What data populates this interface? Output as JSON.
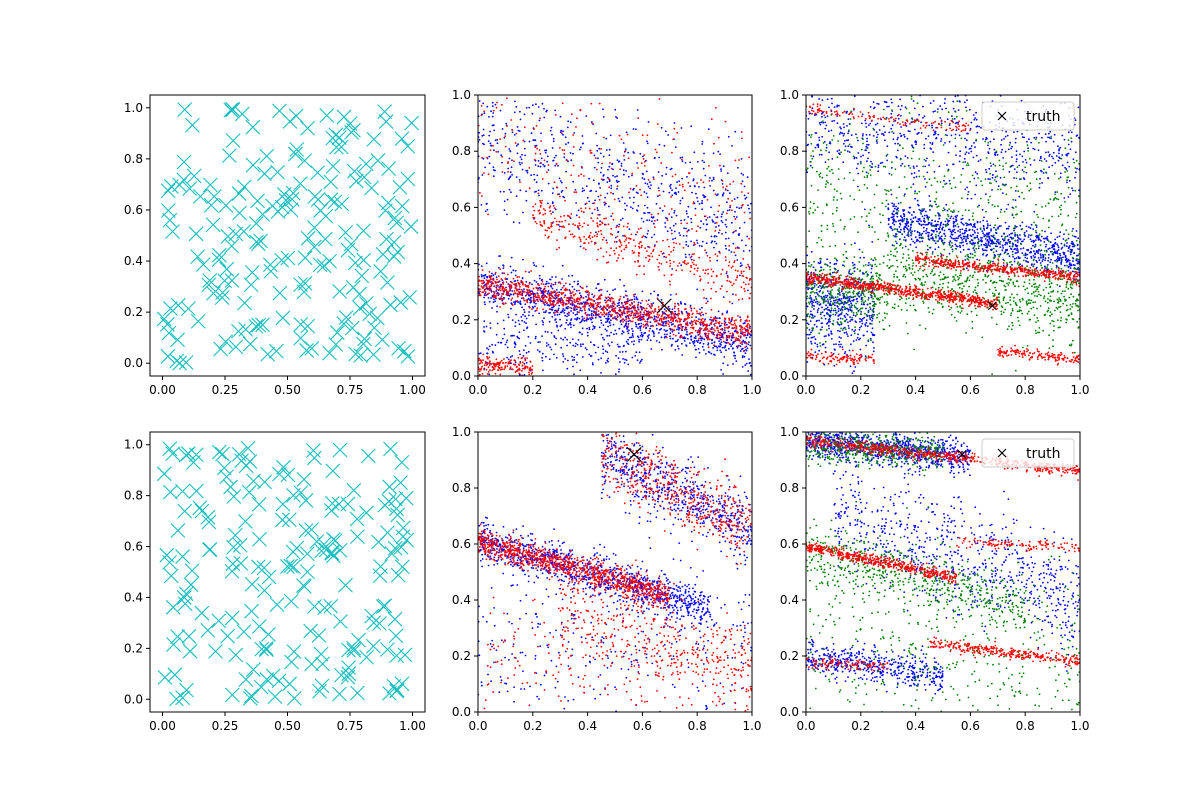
{
  "colors": {
    "cyan": "#17bfbf",
    "red": "#ff0000",
    "blue": "#0000ff",
    "green": "#008000",
    "black": "#000000"
  },
  "chart_data": [
    {
      "id": "top-left",
      "type": "scatter",
      "marker": "x",
      "xlim": [
        -0.05,
        1.05
      ],
      "ylim": [
        -0.05,
        1.05
      ],
      "xticks": [
        "0.00",
        "0.25",
        "0.50",
        "0.75",
        "1.00"
      ],
      "yticks": [
        "0.0",
        "0.2",
        "0.4",
        "0.6",
        "0.8",
        "1.0"
      ],
      "series": [
        {
          "color": "cyan",
          "count": 200,
          "seed": 11
        }
      ]
    },
    {
      "id": "top-middle",
      "type": "scatter",
      "marker": "dot",
      "xlim": [
        0,
        1
      ],
      "ylim": [
        0,
        1
      ],
      "xticks": [
        "0.0",
        "0.2",
        "0.4",
        "0.6",
        "0.8",
        "1.0"
      ],
      "yticks": [
        "0.0",
        "0.2",
        "0.4",
        "0.6",
        "0.8",
        "1.0"
      ],
      "series": [
        {
          "color": "blue",
          "bands": [
            {
              "y0": 0.33,
              "slope": -0.22,
              "spread": 0.045,
              "count": 1100,
              "x0": 0.0,
              "x1": 1.0
            },
            {
              "y0": 0.85,
              "slope": -0.3,
              "spread": 0.12,
              "count": 700,
              "x0": 0.0,
              "x1": 1.0
            },
            {
              "y0": 0.1,
              "slope": 0.0,
              "spread": 0.08,
              "count": 300,
              "x0": 0.0,
              "x1": 0.6
            }
          ]
        },
        {
          "color": "red",
          "bands": [
            {
              "y0": 0.33,
              "slope": -0.18,
              "spread": 0.025,
              "count": 1000,
              "x0": 0.0,
              "x1": 1.0
            },
            {
              "y0": 0.63,
              "slope": -0.3,
              "spread": 0.04,
              "count": 350,
              "x0": 0.2,
              "x1": 1.0
            },
            {
              "y0": 0.04,
              "slope": -0.05,
              "spread": 0.015,
              "count": 150,
              "x0": 0.0,
              "x1": 0.2
            },
            {
              "y0": 0.85,
              "slope": -0.25,
              "spread": 0.12,
              "count": 250,
              "x0": 0.0,
              "x1": 1.0
            }
          ]
        }
      ],
      "truth": {
        "x": 0.68,
        "y": 0.25,
        "size": "large"
      }
    },
    {
      "id": "top-right",
      "type": "scatter",
      "marker": "dot",
      "xlim": [
        0,
        1
      ],
      "ylim": [
        0,
        1
      ],
      "xticks": [
        "0.0",
        "0.2",
        "0.4",
        "0.6",
        "0.8",
        "1.0"
      ],
      "yticks": [
        "0.0",
        "0.2",
        "0.4",
        "0.6",
        "0.8",
        "1.0"
      ],
      "legend": {
        "label": "truth",
        "loc": "upper right"
      },
      "series": [
        {
          "color": "blue",
          "bands": [
            {
              "y0": 0.62,
              "slope": -0.2,
              "spread": 0.04,
              "count": 900,
              "x0": 0.3,
              "x1": 1.0
            },
            {
              "y0": 0.9,
              "slope": -0.1,
              "spread": 0.1,
              "count": 700,
              "x0": 0.0,
              "x1": 1.0
            },
            {
              "y0": 0.25,
              "slope": 0.0,
              "spread": 0.09,
              "count": 500,
              "x0": 0.0,
              "x1": 0.25
            }
          ]
        },
        {
          "color": "green",
          "bands": [
            {
              "y0": 0.42,
              "slope": -0.15,
              "spread": 0.08,
              "count": 700,
              "x0": 0.3,
              "x1": 1.0
            },
            {
              "y0": 0.3,
              "slope": -0.05,
              "spread": 0.06,
              "count": 400,
              "x0": 0.0,
              "x1": 0.3
            },
            {
              "y0": 0.7,
              "slope": -0.1,
              "spread": 0.15,
              "count": 500,
              "x0": 0.0,
              "x1": 1.0
            }
          ]
        },
        {
          "color": "red",
          "bands": [
            {
              "y0": 0.35,
              "slope": -0.13,
              "spread": 0.01,
              "count": 700,
              "x0": 0.0,
              "x1": 0.7
            },
            {
              "y0": 0.46,
              "slope": -0.11,
              "spread": 0.01,
              "count": 450,
              "x0": 0.4,
              "x1": 1.0
            },
            {
              "y0": 0.07,
              "slope": -0.05,
              "spread": 0.01,
              "count": 100,
              "x0": 0.0,
              "x1": 0.25
            },
            {
              "y0": 0.16,
              "slope": -0.1,
              "spread": 0.01,
              "count": 150,
              "x0": 0.7,
              "x1": 1.0
            },
            {
              "y0": 0.95,
              "slope": -0.12,
              "spread": 0.01,
              "count": 120,
              "x0": 0.0,
              "x1": 0.6
            }
          ]
        }
      ],
      "truth": {
        "x": 0.68,
        "y": 0.25,
        "size": "small"
      }
    },
    {
      "id": "bottom-left",
      "type": "scatter",
      "marker": "x",
      "xlim": [
        -0.05,
        1.05
      ],
      "ylim": [
        -0.05,
        1.05
      ],
      "xticks": [
        "0.00",
        "0.25",
        "0.50",
        "0.75",
        "1.00"
      ],
      "yticks": [
        "0.0",
        "0.2",
        "0.4",
        "0.6",
        "0.8",
        "1.0"
      ],
      "series": [
        {
          "color": "cyan",
          "count": 200,
          "seed": 29
        }
      ]
    },
    {
      "id": "bottom-middle",
      "type": "scatter",
      "marker": "dot",
      "xlim": [
        0,
        1
      ],
      "ylim": [
        0,
        1
      ],
      "xticks": [
        "0.0",
        "0.2",
        "0.4",
        "0.6",
        "0.8",
        "1.0"
      ],
      "yticks": [
        "0.0",
        "0.2",
        "0.4",
        "0.6",
        "0.8",
        "1.0"
      ],
      "series": [
        {
          "color": "blue",
          "bands": [
            {
              "y0": 0.61,
              "slope": -0.28,
              "spread": 0.035,
              "count": 1000,
              "x0": 0.0,
              "x1": 0.85
            },
            {
              "y0": 1.15,
              "slope": -0.5,
              "spread": 0.06,
              "count": 600,
              "x0": 0.45,
              "x1": 1.0
            },
            {
              "y0": 0.25,
              "slope": 0.0,
              "spread": 0.15,
              "count": 300,
              "x0": 0.0,
              "x1": 1.0
            }
          ]
        },
        {
          "color": "red",
          "bands": [
            {
              "y0": 0.61,
              "slope": -0.28,
              "spread": 0.025,
              "count": 1000,
              "x0": 0.0,
              "x1": 0.7
            },
            {
              "y0": 1.15,
              "slope": -0.5,
              "spread": 0.06,
              "count": 500,
              "x0": 0.45,
              "x1": 1.0
            },
            {
              "y0": 0.45,
              "slope": -0.3,
              "spread": 0.08,
              "count": 350,
              "x0": 0.3,
              "x1": 1.0
            },
            {
              "y0": 0.15,
              "slope": 0.0,
              "spread": 0.12,
              "count": 200,
              "x0": 0.0,
              "x1": 1.0
            }
          ]
        }
      ],
      "truth": {
        "x": 0.57,
        "y": 0.92,
        "size": "large"
      }
    },
    {
      "id": "bottom-right",
      "type": "scatter",
      "marker": "dot",
      "xlim": [
        0,
        1
      ],
      "ylim": [
        0,
        1
      ],
      "xticks": [
        "0.0",
        "0.2",
        "0.4",
        "0.6",
        "0.8",
        "1.0"
      ],
      "yticks": [
        "0.0",
        "0.2",
        "0.4",
        "0.6",
        "0.8",
        "1.0"
      ],
      "legend": {
        "label": "truth",
        "loc": "upper right"
      },
      "series": [
        {
          "color": "blue",
          "bands": [
            {
              "y0": 0.97,
              "slope": -0.1,
              "spread": 0.03,
              "count": 900,
              "x0": 0.0,
              "x1": 0.6
            },
            {
              "y0": 0.75,
              "slope": -0.35,
              "spread": 0.1,
              "count": 700,
              "x0": 0.1,
              "x1": 1.0
            },
            {
              "y0": 0.2,
              "slope": -0.15,
              "spread": 0.03,
              "count": 450,
              "x0": 0.0,
              "x1": 0.5
            }
          ]
        },
        {
          "color": "green",
          "bands": [
            {
              "y0": 0.95,
              "slope": -0.05,
              "spread": 0.03,
              "count": 450,
              "x0": 0.0,
              "x1": 0.5
            },
            {
              "y0": 0.58,
              "slope": -0.25,
              "spread": 0.05,
              "count": 500,
              "x0": 0.0,
              "x1": 0.8
            },
            {
              "y0": 0.3,
              "slope": -0.1,
              "spread": 0.18,
              "count": 450,
              "x0": 0.0,
              "x1": 1.0
            }
          ]
        },
        {
          "color": "red",
          "bands": [
            {
              "y0": 0.97,
              "slope": -0.11,
              "spread": 0.01,
              "count": 600,
              "x0": 0.0,
              "x1": 1.0
            },
            {
              "y0": 0.59,
              "slope": -0.2,
              "spread": 0.01,
              "count": 500,
              "x0": 0.0,
              "x1": 0.55
            },
            {
              "y0": 0.3,
              "slope": -0.12,
              "spread": 0.01,
              "count": 300,
              "x0": 0.45,
              "x1": 1.0
            },
            {
              "y0": 0.62,
              "slope": -0.03,
              "spread": 0.01,
              "count": 120,
              "x0": 0.55,
              "x1": 1.0
            },
            {
              "y0": 0.18,
              "slope": -0.05,
              "spread": 0.01,
              "count": 100,
              "x0": 0.0,
              "x1": 0.3
            }
          ]
        }
      ],
      "truth": {
        "x": 0.57,
        "y": 0.92,
        "size": "small"
      }
    }
  ]
}
